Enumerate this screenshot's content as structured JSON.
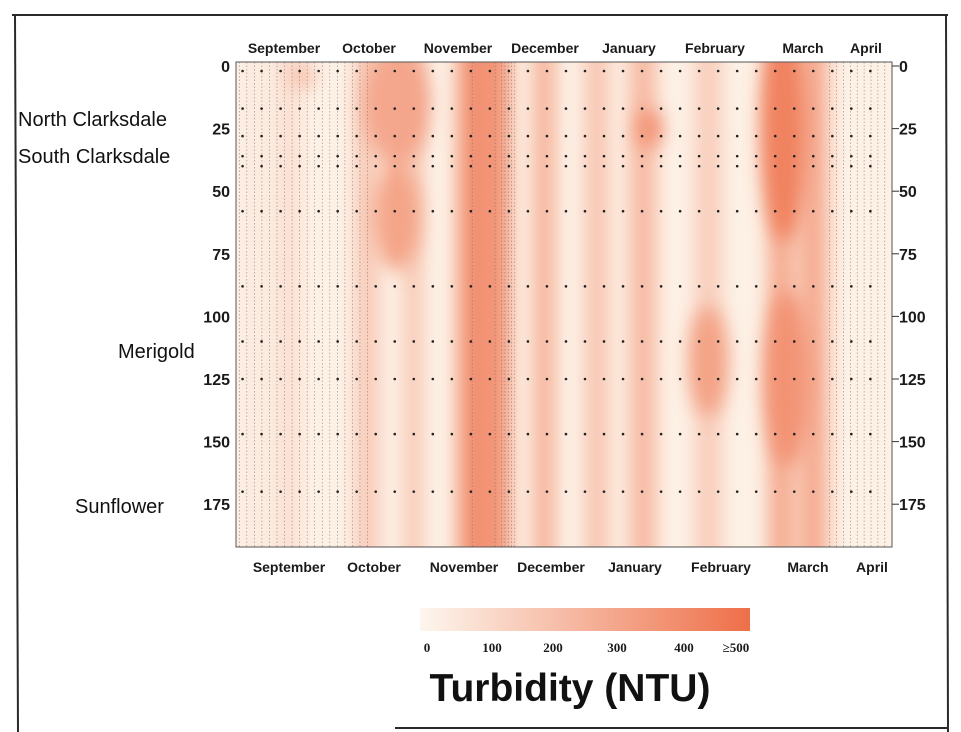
{
  "chart_data": {
    "type": "heatmap",
    "title": "",
    "colorbar": {
      "title": "Turbidity (NTU)",
      "ticks": [
        "0",
        "100",
        "200",
        "300",
        "400",
        "≥500"
      ],
      "range": [
        0,
        500
      ],
      "color_low": "#fdf6ee",
      "color_high": "#ee6f48"
    },
    "x_months_top": [
      "September",
      "October",
      "November",
      "December",
      "January",
      "February",
      "March",
      "April"
    ],
    "x_months_bottom": [
      "September",
      "October",
      "November",
      "December",
      "January",
      "February",
      "March",
      "April"
    ],
    "y_axis": {
      "range": [
        0,
        195
      ],
      "ticks_left": [
        "0",
        "25",
        "50",
        "75",
        "100",
        "125",
        "150",
        "175"
      ],
      "ticks_right": [
        "0",
        "25",
        "50",
        "75",
        "100",
        "125",
        "150",
        "175"
      ],
      "inverted": true
    },
    "sites": [
      {
        "label": "North Clarksdale",
        "distance": 23
      },
      {
        "label": "South Clarksdale",
        "distance": 36
      },
      {
        "label": "Merigold",
        "distance": 113
      },
      {
        "label": "Sunflower",
        "distance": 172
      }
    ],
    "turbidity_bands": [
      {
        "month": "September",
        "center": 0.03,
        "width": 0.03,
        "value": 60
      },
      {
        "month": "September",
        "center": 0.08,
        "width": 0.03,
        "value": 110
      },
      {
        "month": "October",
        "center": 0.2,
        "width": 0.03,
        "value": 230
      },
      {
        "month": "October",
        "center": 0.27,
        "width": 0.02,
        "value": 280
      },
      {
        "month": "November",
        "center": 0.36,
        "width": 0.04,
        "value": 480
      },
      {
        "month": "November",
        "center": 0.4,
        "width": 0.03,
        "value": 500
      },
      {
        "month": "December",
        "center": 0.47,
        "width": 0.025,
        "value": 380
      },
      {
        "month": "January",
        "center": 0.55,
        "width": 0.03,
        "value": 260
      },
      {
        "month": "January",
        "center": 0.62,
        "width": 0.035,
        "value": 300
      },
      {
        "month": "February",
        "center": 0.72,
        "width": 0.035,
        "value": 200
      },
      {
        "month": "March",
        "center": 0.83,
        "width": 0.03,
        "value": 400
      },
      {
        "month": "March",
        "center": 0.88,
        "width": 0.04,
        "value": 350
      }
    ],
    "grid": false,
    "sample_markers": true
  }
}
